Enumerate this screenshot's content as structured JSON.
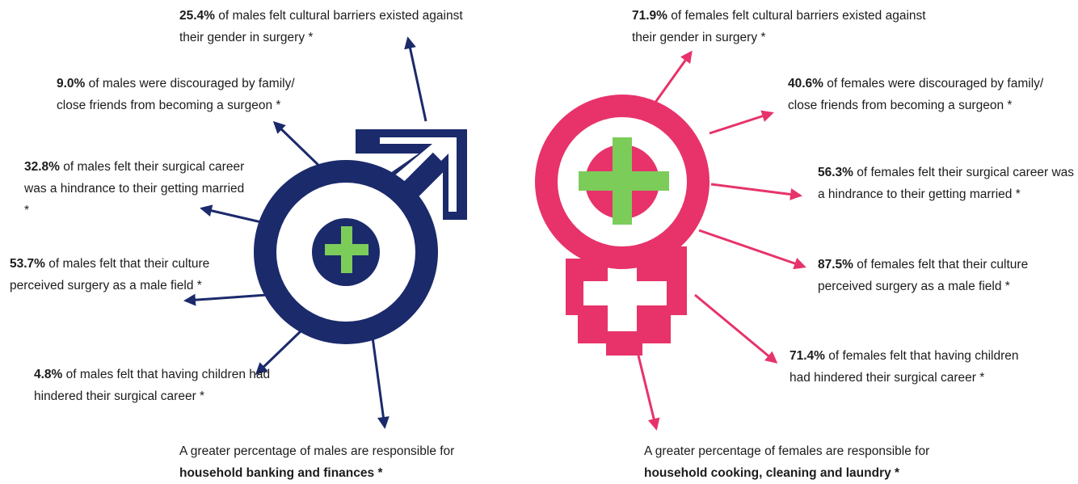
{
  "male": {
    "callouts": [
      {
        "percent": "25.4%",
        "text": "of males felt cultural barriers existed against their gender in surgery *"
      },
      {
        "percent": "9.0%",
        "text": "of males were discouraged by family/ close friends from becoming a surgeon *"
      },
      {
        "percent": "32.8%",
        "text": "of males felt their surgical career was a hindrance to their getting married *"
      },
      {
        "percent": "53.7%",
        "text": "of males felt that their culture perceived surgery as a male field *"
      },
      {
        "percent": "4.8%",
        "text": "of males felt that having children had hindered their surgical career *"
      }
    ],
    "note": {
      "text": "A greater percentage of males are responsible for",
      "bold": "household banking and finances *"
    }
  },
  "female": {
    "callouts": [
      {
        "percent": "71.9%",
        "text": "of females felt cultural barriers existed against their gender in surgery *"
      },
      {
        "percent": "40.6%",
        "text": "of females were discouraged by family/ close friends from becoming a surgeon *"
      },
      {
        "percent": "56.3%",
        "text": "of females felt their surgical career was a hindrance to their getting married *"
      },
      {
        "percent": "87.5%",
        "text": "of females felt that their culture perceived surgery as a male field *"
      },
      {
        "percent": "71.4%",
        "text": "of females felt that having children had hindered their surgical career *"
      }
    ],
    "note": {
      "text": "A greater percentage of females are responsible for",
      "bold": "household cooking, cleaning and laundry *"
    }
  }
}
